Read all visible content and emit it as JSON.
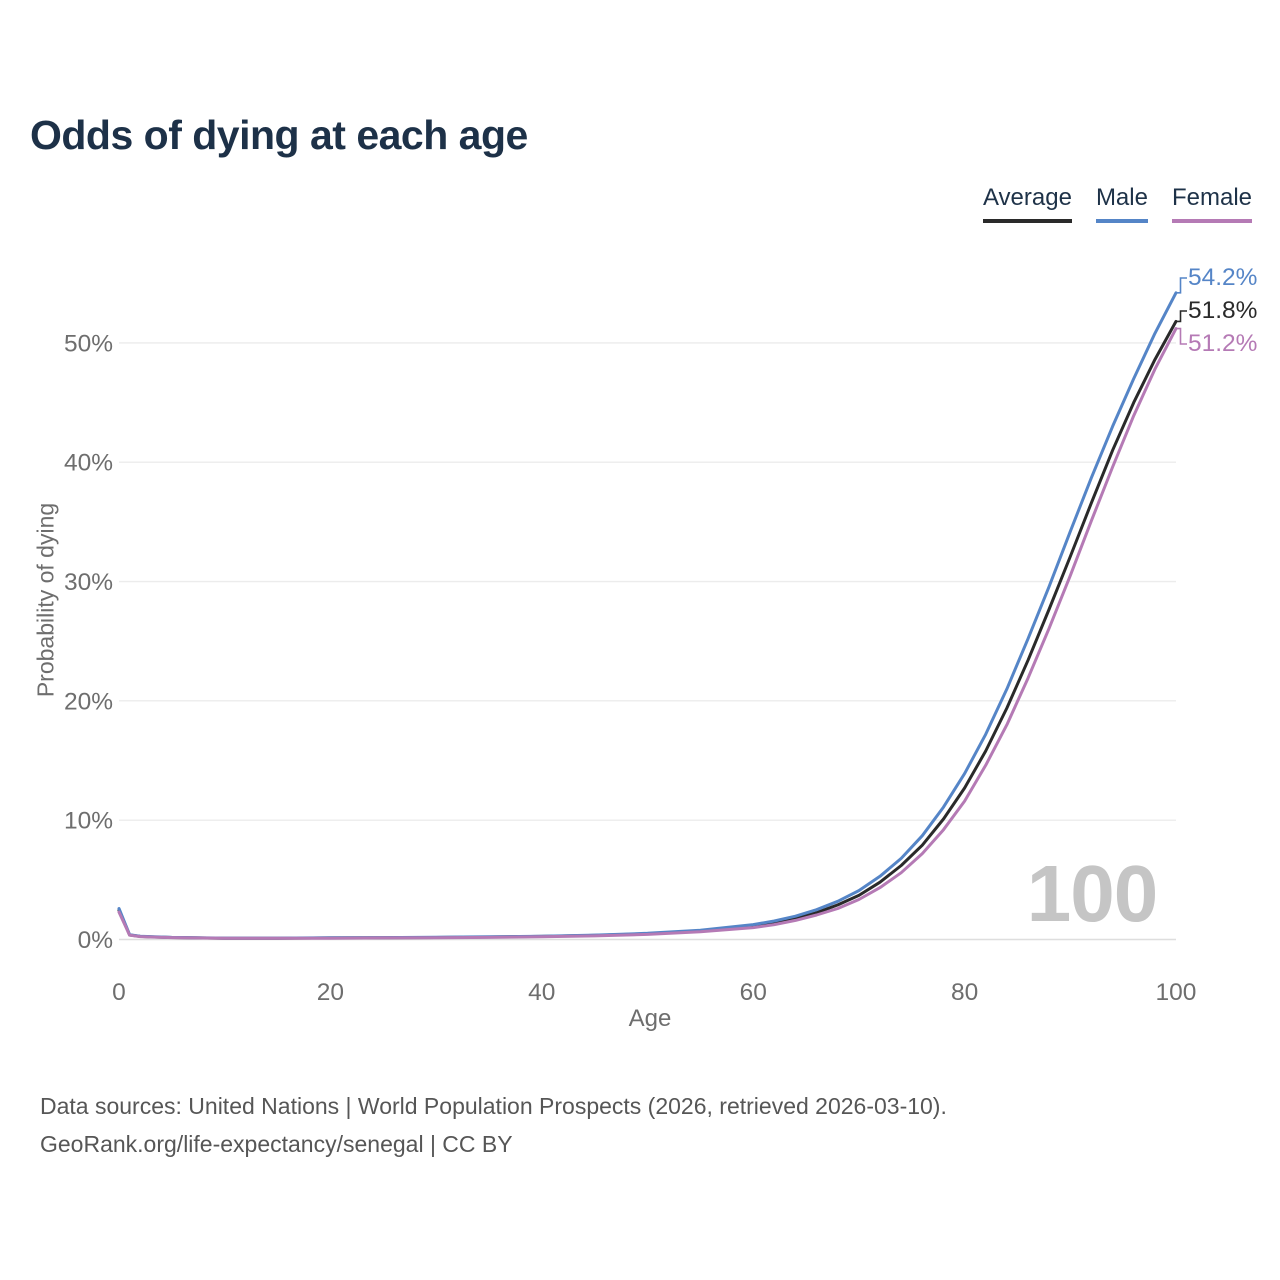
{
  "title": "Odds of dying at each age",
  "watermark_age": "100",
  "source_note": {
    "line1": "Data sources: United Nations | World Population Prospects (2026, retrieved 2026-03-10).",
    "line2": "GeoRank.org/life-expectancy/senegal | CC BY"
  },
  "colors": {
    "average": "#2a2a2a",
    "male": "#5585c7",
    "female": "#b57ab5",
    "title_text": "#1d3148",
    "axis_text": "#6e6e6e",
    "gridline": "#ececec",
    "baseline": "#dedede",
    "watermark": "#c5c5c5"
  },
  "chart_data": {
    "type": "line",
    "title": "Odds of dying at each age",
    "xlabel": "Age",
    "ylabel": "Probability of dying",
    "xlim": [
      0,
      100
    ],
    "ylim": [
      0,
      55
    ],
    "x_ticks": [
      0,
      20,
      40,
      60,
      80,
      100
    ],
    "y_ticks": [
      0,
      10,
      20,
      30,
      40,
      50
    ],
    "y_tick_suffix": "%",
    "grid": true,
    "legend_position": "top-right",
    "x": [
      0,
      1,
      2,
      3,
      5,
      10,
      15,
      20,
      25,
      30,
      35,
      40,
      45,
      50,
      55,
      60,
      62,
      64,
      66,
      68,
      70,
      72,
      74,
      76,
      78,
      80,
      82,
      84,
      86,
      88,
      90,
      92,
      94,
      96,
      98,
      100
    ],
    "series": [
      {
        "name": "Average",
        "color": "#2a2a2a",
        "end_label": "51.8%",
        "values": [
          2.45,
          0.38,
          0.26,
          0.22,
          0.17,
          0.11,
          0.11,
          0.13,
          0.15,
          0.17,
          0.21,
          0.26,
          0.34,
          0.48,
          0.72,
          1.12,
          1.4,
          1.75,
          2.25,
          2.9,
          3.7,
          4.8,
          6.2,
          7.9,
          10.1,
          12.7,
          15.8,
          19.4,
          23.4,
          27.7,
          32.1,
          36.6,
          41.0,
          45.0,
          48.6,
          51.8
        ]
      },
      {
        "name": "Male",
        "color": "#5585c7",
        "end_label": "54.2%",
        "values": [
          2.6,
          0.4,
          0.28,
          0.24,
          0.18,
          0.12,
          0.12,
          0.14,
          0.16,
          0.19,
          0.23,
          0.28,
          0.37,
          0.52,
          0.78,
          1.25,
          1.55,
          1.95,
          2.5,
          3.2,
          4.1,
          5.3,
          6.8,
          8.7,
          11.1,
          13.9,
          17.2,
          21.0,
          25.2,
          29.6,
          34.2,
          38.7,
          43.0,
          47.0,
          50.8,
          54.2
        ]
      },
      {
        "name": "Female",
        "color": "#b57ab5",
        "end_label": "51.2%",
        "values": [
          2.3,
          0.36,
          0.24,
          0.21,
          0.16,
          0.1,
          0.1,
          0.11,
          0.13,
          0.15,
          0.18,
          0.23,
          0.3,
          0.43,
          0.65,
          1.0,
          1.25,
          1.6,
          2.05,
          2.6,
          3.35,
          4.35,
          5.6,
          7.2,
          9.2,
          11.6,
          14.6,
          18.0,
          21.9,
          26.1,
          30.5,
          35.1,
          39.6,
          43.9,
          47.8,
          51.2
        ]
      }
    ],
    "legend": [
      "Average",
      "Male",
      "Female"
    ]
  }
}
